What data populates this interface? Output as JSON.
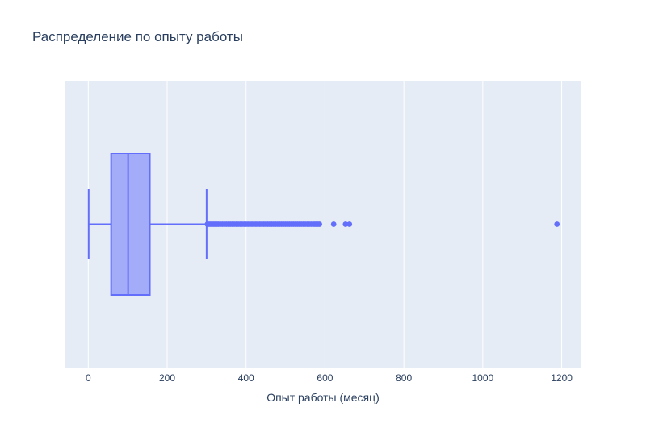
{
  "chart_data": {
    "type": "box",
    "title": "Распределение по опыту работы",
    "xlabel": "Опыт работы (месяц)",
    "ylabel": "",
    "xlim": [
      -60,
      1250
    ],
    "xticks": [
      0,
      200,
      400,
      600,
      800,
      1000,
      1200
    ],
    "grid": true,
    "orientation": "horizontal",
    "colors": {
      "plot_bg": "#e5ecf6",
      "grid": "#ffffff",
      "box_fill": "#a3acf8",
      "box_line": "#636efa",
      "text": "#2a3f5f"
    },
    "box": {
      "min": 1,
      "q1": 58,
      "median": 101,
      "q3": 156,
      "upper_fence": 300
    },
    "outliers": [
      302,
      306,
      310,
      314,
      318,
      322,
      326,
      330,
      335,
      340,
      345,
      350,
      355,
      360,
      365,
      370,
      375,
      380,
      385,
      390,
      395,
      400,
      405,
      410,
      415,
      420,
      425,
      430,
      435,
      440,
      445,
      450,
      455,
      460,
      465,
      470,
      475,
      480,
      485,
      490,
      495,
      500,
      505,
      510,
      515,
      520,
      525,
      530,
      535,
      540,
      545,
      550,
      555,
      560,
      565,
      570,
      574,
      578,
      582,
      586,
      622,
      652,
      662,
      1188
    ]
  }
}
